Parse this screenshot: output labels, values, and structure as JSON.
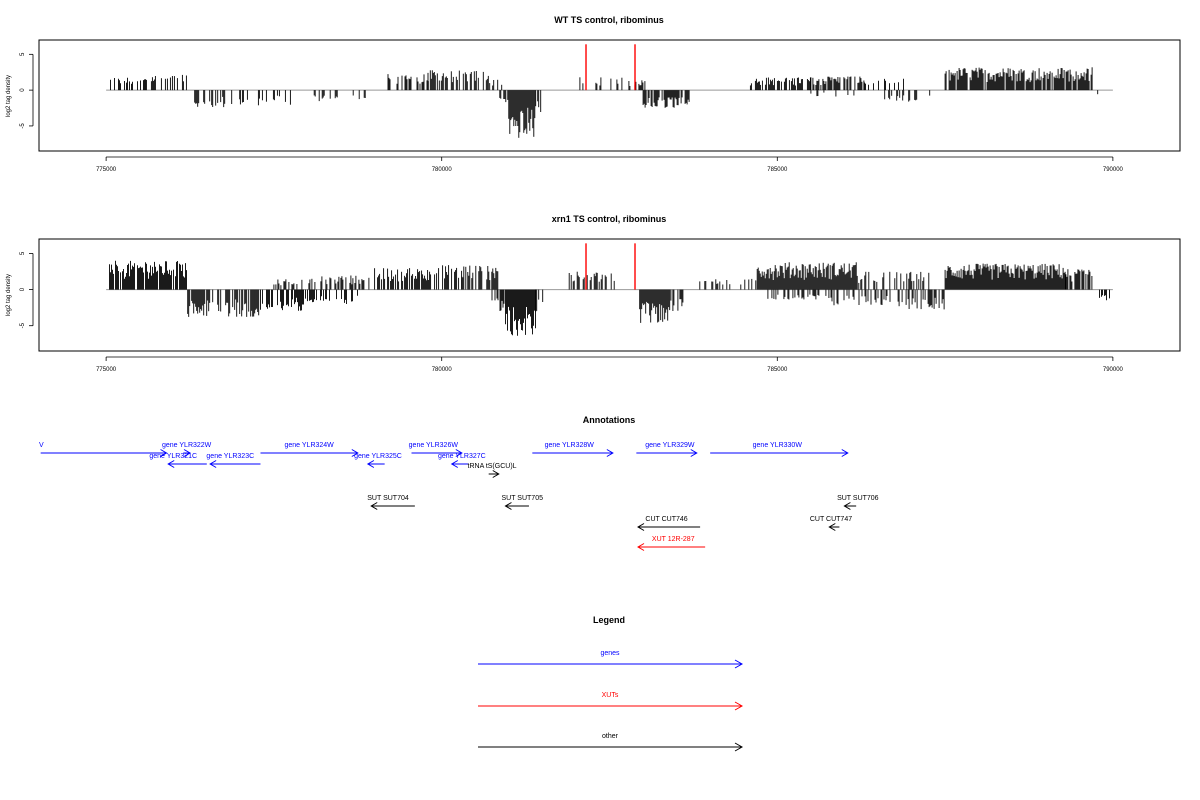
{
  "chart_data": [
    {
      "type": "bar",
      "title": "WT TS control, ribominus",
      "ylabel": "log2 tag density",
      "xlim": [
        774000,
        791000
      ],
      "ylim": [
        -8.5,
        7
      ],
      "xticks": [
        775000,
        780000,
        785000,
        790000
      ],
      "xtick_labels": [
        "775000",
        "780000",
        "785000",
        "790000"
      ],
      "yticks": [
        5,
        0,
        -5
      ],
      "ytick_labels": [
        "5",
        "0",
        "-5"
      ],
      "marker_lines": {
        "color": "#ff0000",
        "x": [
          782150,
          782880
        ]
      },
      "baseline": {
        "from": 775000,
        "to": 790000,
        "color": "#999999"
      },
      "series": [
        {
          "strand": "plus",
          "segments": [
            {
              "start": 775050,
              "end": 775600,
              "density": 0.45,
              "amp": 1.8
            },
            {
              "start": 775600,
              "end": 776200,
              "density": 0.4,
              "amp": 2.2
            },
            {
              "start": 779200,
              "end": 779800,
              "density": 0.5,
              "amp": 2.5
            },
            {
              "start": 779800,
              "end": 780700,
              "density": 0.6,
              "amp": 2.8
            },
            {
              "start": 780700,
              "end": 780900,
              "density": 0.4,
              "amp": 1.6
            },
            {
              "start": 782000,
              "end": 782700,
              "density": 0.35,
              "amp": 1.8
            },
            {
              "start": 782700,
              "end": 783050,
              "density": 0.3,
              "amp": 1.5
            },
            {
              "start": 784600,
              "end": 785500,
              "density": 0.6,
              "amp": 1.8
            },
            {
              "start": 785500,
              "end": 786300,
              "density": 0.6,
              "amp": 2.0
            },
            {
              "start": 786300,
              "end": 786900,
              "density": 0.45,
              "amp": 1.6
            },
            {
              "start": 787500,
              "end": 789700,
              "density": 0.85,
              "amp": 3.2
            }
          ]
        },
        {
          "strand": "minus",
          "segments": [
            {
              "start": 776200,
              "end": 777000,
              "density": 0.4,
              "amp": 2.4
            },
            {
              "start": 777000,
              "end": 777800,
              "density": 0.4,
              "amp": 2.2
            },
            {
              "start": 778100,
              "end": 778900,
              "density": 0.25,
              "amp": 1.6
            },
            {
              "start": 780850,
              "end": 781000,
              "density": 0.5,
              "amp": 1.8
            },
            {
              "start": 781000,
              "end": 781400,
              "density": 1.0,
              "amp": 6.8
            },
            {
              "start": 781400,
              "end": 781500,
              "density": 0.6,
              "amp": 3.2
            },
            {
              "start": 783000,
              "end": 783700,
              "density": 0.8,
              "amp": 2.6
            },
            {
              "start": 785500,
              "end": 786200,
              "density": 0.15,
              "amp": 0.9
            },
            {
              "start": 786600,
              "end": 787300,
              "density": 0.3,
              "amp": 1.6
            },
            {
              "start": 789700,
              "end": 789800,
              "density": 0.5,
              "amp": 0.9
            }
          ]
        }
      ]
    },
    {
      "type": "bar",
      "title": "xrn1 TS control, ribominus",
      "ylabel": "log2 tag density",
      "xlim": [
        774000,
        791000
      ],
      "ylim": [
        -8.5,
        7
      ],
      "xticks": [
        775000,
        780000,
        785000,
        790000
      ],
      "xtick_labels": [
        "775000",
        "780000",
        "785000",
        "790000"
      ],
      "yticks": [
        5,
        0,
        -5
      ],
      "ytick_labels": [
        "5",
        "0",
        "-5"
      ],
      "marker_lines": {
        "color": "#ff0000",
        "x": [
          782150,
          782880
        ]
      },
      "baseline": {
        "from": 775000,
        "to": 790000,
        "color": "#999999"
      },
      "series": [
        {
          "strand": "plus",
          "segments": [
            {
              "start": 775050,
              "end": 776200,
              "density": 0.85,
              "amp": 4.0
            },
            {
              "start": 777500,
              "end": 778200,
              "density": 0.4,
              "amp": 1.5
            },
            {
              "start": 778200,
              "end": 779000,
              "density": 0.4,
              "amp": 2.0
            },
            {
              "start": 779000,
              "end": 779700,
              "density": 0.7,
              "amp": 3.0
            },
            {
              "start": 779700,
              "end": 780300,
              "density": 0.6,
              "amp": 3.5
            },
            {
              "start": 780300,
              "end": 780850,
              "density": 0.7,
              "amp": 3.5
            },
            {
              "start": 781900,
              "end": 782800,
              "density": 0.35,
              "amp": 2.5
            },
            {
              "start": 783800,
              "end": 784700,
              "density": 0.2,
              "amp": 1.5
            },
            {
              "start": 784700,
              "end": 786200,
              "density": 1.0,
              "amp": 3.8
            },
            {
              "start": 786200,
              "end": 787300,
              "density": 0.4,
              "amp": 2.5
            },
            {
              "start": 787500,
              "end": 789300,
              "density": 1.0,
              "amp": 3.6
            },
            {
              "start": 789300,
              "end": 789700,
              "density": 0.7,
              "amp": 3.0
            }
          ]
        },
        {
          "strand": "minus",
          "segments": [
            {
              "start": 776200,
              "end": 777300,
              "density": 0.8,
              "amp": 3.8
            },
            {
              "start": 777300,
              "end": 778000,
              "density": 0.6,
              "amp": 3.0
            },
            {
              "start": 778000,
              "end": 778800,
              "density": 0.4,
              "amp": 2.0
            },
            {
              "start": 780750,
              "end": 780950,
              "density": 0.6,
              "amp": 3.0
            },
            {
              "start": 780950,
              "end": 781400,
              "density": 1.0,
              "amp": 6.5
            },
            {
              "start": 781400,
              "end": 781550,
              "density": 0.6,
              "amp": 3.6
            },
            {
              "start": 782950,
              "end": 783400,
              "density": 1.0,
              "amp": 4.8
            },
            {
              "start": 783400,
              "end": 783600,
              "density": 0.6,
              "amp": 3.0
            },
            {
              "start": 784800,
              "end": 785800,
              "density": 0.3,
              "amp": 1.4
            },
            {
              "start": 785800,
              "end": 786800,
              "density": 0.4,
              "amp": 2.2
            },
            {
              "start": 786800,
              "end": 787500,
              "density": 0.5,
              "amp": 2.8
            },
            {
              "start": 789800,
              "end": 790000,
              "density": 0.6,
              "amp": 1.5
            }
          ]
        }
      ]
    }
  ],
  "annotations": {
    "title": "Annotations",
    "xlim": [
      774000,
      791000
    ],
    "features": [
      {
        "label": "V",
        "x1": 774050,
        "x2": 777800,
        "row": 0,
        "dir": "right",
        "color": "#0000ff",
        "label_at": 774000
      },
      {
        "label": "gene YLR322W",
        "x1": 778300,
        "x2": 778500,
        "row": 0,
        "dir": "right",
        "color": "#0000ff",
        "label_at": 778400
      },
      {
        "label": "gene YLR321C",
        "x1": 777850,
        "x2": 779000,
        "row": 1,
        "dir": "left",
        "color": "#0000ff",
        "label_at": 778000
      },
      {
        "label": "gene YLR323C",
        "x1": 779100,
        "x2": 780600,
        "row": 1,
        "dir": "left",
        "color": "#0000ff",
        "label_at": 779700
      },
      {
        "label": "gene YLR324W",
        "x1": 780600,
        "x2": 783500,
        "row": 0,
        "dir": "right",
        "color": "#0000ff",
        "label_at": 782050
      },
      {
        "label": "gene YLR325C",
        "x1": 783800,
        "x2": 784300,
        "row": 1,
        "dir": "left",
        "color": "#0000ff",
        "label_at": 784100
      },
      {
        "label": "gene YLR326W",
        "x1": 785100,
        "x2": 786600,
        "row": 0,
        "dir": "right",
        "color": "#0000ff",
        "label_at": 785750
      },
      {
        "label": "gene YLR327C",
        "x1": 786300,
        "x2": 786800,
        "row": 1,
        "dir": "left",
        "color": "#0000ff",
        "label_at": 786600
      },
      {
        "label": "tRNA tS(GCU)L",
        "x1": 787400,
        "x2": 787700,
        "row": 2,
        "dir": "right",
        "color": "#000000",
        "label_at": 787500
      },
      {
        "label": "gene YLR328W",
        "x1": 788700,
        "x2": 791100,
        "row": 0,
        "dir": "right",
        "color": "#0000ff",
        "label_at": 789800
      },
      {
        "label": "gene YLR329W",
        "x1": 791800,
        "x2": 793600,
        "row": 0,
        "dir": "right",
        "color": "#0000ff",
        "label_at": 792800
      },
      {
        "label": "gene YLR330W",
        "x1": 794000,
        "x2": 798100,
        "row": 0,
        "dir": "right",
        "color": "#0000ff",
        "label_at": 796000
      },
      {
        "label": "SUT SUT704",
        "x1": 783900,
        "x2": 785200,
        "row": 3,
        "dir": "left",
        "color": "#000000",
        "label_at": 784400
      },
      {
        "label": "SUT SUT705",
        "x1": 787900,
        "x2": 788600,
        "row": 3,
        "dir": "left",
        "color": "#000000",
        "label_at": 788400
      },
      {
        "label": "SUT SUT706",
        "x1": 798000,
        "x2": 798350,
        "row": 3,
        "dir": "left",
        "color": "#000000",
        "label_at": 798400
      },
      {
        "label": "CUT CUT746",
        "x1": 791850,
        "x2": 793700,
        "row": 4,
        "dir": "left",
        "color": "#000000",
        "label_at": 792700
      },
      {
        "label": "CUT CUT747",
        "x1": 797550,
        "x2": 797850,
        "row": 4,
        "dir": "left",
        "color": "#000000",
        "label_at": 797600
      },
      {
        "label": "XUT 12R-287",
        "x1": 791850,
        "x2": 793850,
        "row": 5,
        "dir": "left",
        "color": "#ff0000",
        "label_at": 792900
      }
    ]
  },
  "legend": {
    "title": "Legend",
    "items": [
      {
        "label": "genes",
        "color": "#0000ff"
      },
      {
        "label": "XUTs",
        "color": "#ff0000"
      },
      {
        "label": "other",
        "color": "#000000"
      }
    ]
  }
}
